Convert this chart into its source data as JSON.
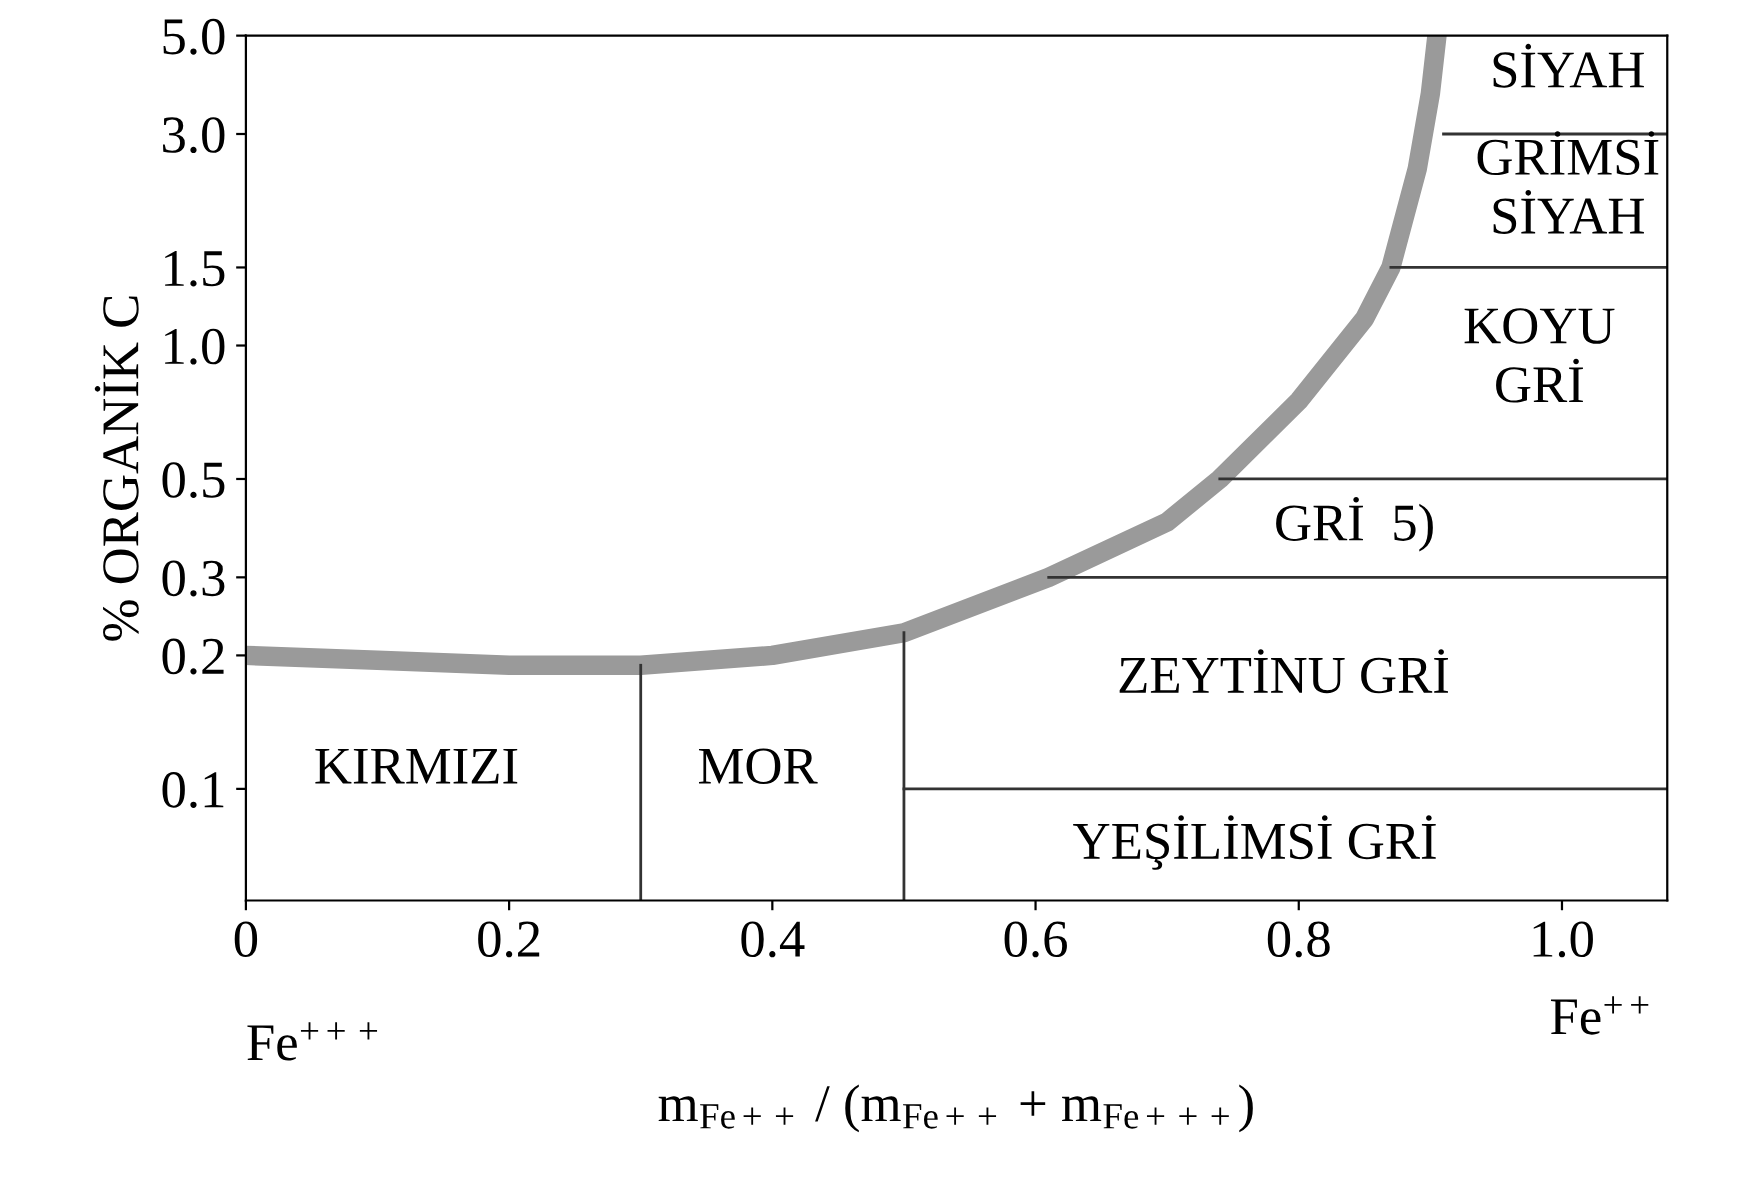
{
  "chart_data": {
    "type": "line",
    "ylabel": "% ORGANİK C",
    "xlabel": "m$_{Fe++}$ / (m$_{Fe++}$ + m$_{Fe+++}$)",
    "log": "y",
    "xlim": [
      0,
      1.08
    ],
    "ylim": [
      0.056,
      5.0
    ],
    "xticks": [
      0,
      0.2,
      0.4,
      0.6,
      0.8,
      {
        "value": 1,
        "label": "1.0"
      }
    ],
    "yticks": [
      0.1,
      0.2,
      0.3,
      0.5,
      {
        "value": 1,
        "label": "1.0"
      },
      1.5,
      {
        "value": 3,
        "label": "3.0"
      },
      {
        "value": 5,
        "label": "5.0"
      }
    ],
    "grid": false,
    "marker": "none",
    "line_style": "solid",
    "series": [
      {
        "color": "#9a9a9a",
        "x": [
          0,
          0.1,
          0.2,
          0.3,
          0.4,
          0.5,
          0.61,
          0.7,
          0.74,
          0.8,
          0.85,
          0.87,
          0.89,
          0.9,
          0.905
        ],
        "values": [
          0.2,
          0.195,
          0.19,
          0.19,
          0.2,
          0.225,
          0.3,
          0.4,
          0.5,
          0.75,
          1.15,
          1.5,
          2.5,
          3.7,
          5.0
        ]
      },
      {
        "color": "#333333",
        "x": [
          0.3,
          0.3
        ],
        "values": [
          0.056,
          0.19
        ]
      },
      {
        "color": "#333333",
        "x": [
          0.5,
          0.5
        ],
        "values": [
          0.056,
          0.225
        ]
      },
      {
        "color": "#333333",
        "x": [
          0.5,
          1.08
        ],
        "values": [
          0.1,
          0.1
        ]
      },
      {
        "color": "#333333",
        "x": [
          0.61,
          1.08
        ],
        "values": [
          0.3,
          0.3
        ]
      },
      {
        "color": "#333333",
        "x": [
          0.74,
          1.08
        ],
        "values": [
          0.5,
          0.5
        ]
      },
      {
        "color": "#333333",
        "x": [
          0.87,
          1.08
        ],
        "values": [
          1.5,
          1.5
        ]
      },
      {
        "color": "#333333",
        "x": [
          0.91,
          1.08
        ],
        "values": [
          3.0,
          3.0
        ]
      }
    ],
    "annotations": [
      "KIRMIZI",
      "MOR",
      "YEŞİLİMSİ GRİ",
      "ZEYTİNU GRİ",
      "GRİ  5)",
      "KOYU\nGRİ",
      "GRİMSİ\nSİYAH",
      "SİYAH",
      "Fe$^{+++}$",
      "Fe$^{++}$"
    ]
  }
}
